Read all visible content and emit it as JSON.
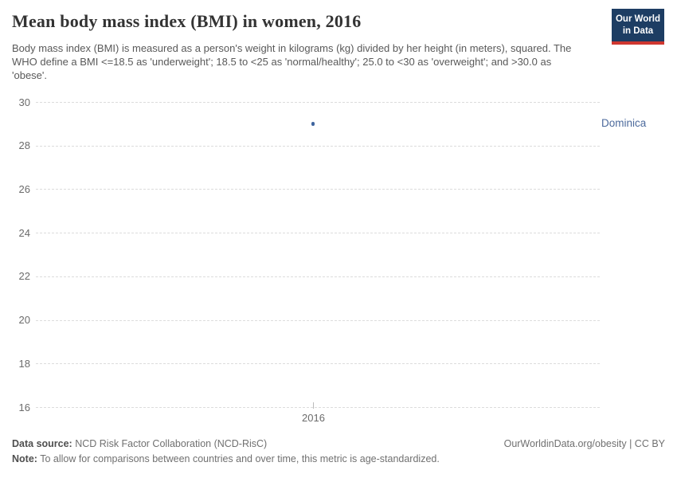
{
  "header": {
    "title": "Mean body mass index (BMI) in women, 2016",
    "subtitle": "Body mass index (BMI) is measured as a person's weight in kilograms (kg) divided by her height (in meters), squared. The WHO define a BMI <=18.5 as 'underweight'; 18.5 to <25 as 'normal/healthy'; 25.0 to <30 as 'overweight'; and >30.0 as 'obese'.",
    "logo": {
      "line1": "Our World",
      "line2": "in Data",
      "bg_color": "#1d3d63",
      "stripe_color": "#cf3730"
    }
  },
  "chart_data": {
    "type": "scatter",
    "title": "Mean body mass index (BMI) in women, 2016",
    "x": [
      2016
    ],
    "series": [
      {
        "name": "Dominica",
        "values": [
          29.0
        ],
        "color": "#3e649e"
      }
    ],
    "categories": [
      "2016"
    ],
    "xlabel": "",
    "ylabel": "",
    "ylim": [
      16,
      30
    ],
    "yticks": [
      16,
      18,
      20,
      22,
      24,
      26,
      28,
      30
    ],
    "xticks": [
      2016
    ],
    "grid": "horizontal-dashed",
    "legend_position": "entity-label-right",
    "entity_label": "Dominica",
    "entity_label_color": "#4c6a9c",
    "gridline_color": "#dcdcdc"
  },
  "footer": {
    "datasource_label": "Data source:",
    "datasource_value": " NCD Risk Factor Collaboration (NCD-RisC)",
    "attribution": "OurWorldinData.org/obesity | CC BY",
    "note_label": "Note:",
    "note_value": " To allow for comparisons between countries and over time, this metric is age-standardized."
  }
}
